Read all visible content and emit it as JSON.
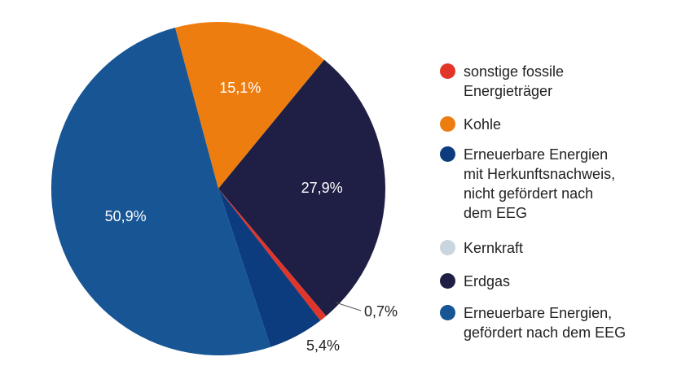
{
  "chart_data": {
    "type": "pie",
    "slices": [
      {
        "name": "sonstige fossile Energieträger",
        "value": 0.7,
        "label": "0,7%",
        "color": "#e2352a"
      },
      {
        "name": "Kohle",
        "value": 15.1,
        "label": "15,1%",
        "color": "#ee7d0f"
      },
      {
        "name": "Erneuerbare Energien mit Herkunftsnachweis, nicht gefördert nach dem EEG",
        "value": 5.4,
        "label": "5,4%",
        "color": "#0c3c7e"
      },
      {
        "name": "Kernkraft",
        "value": 0,
        "label": "",
        "color": "#c9d6df"
      },
      {
        "name": "Erdgas",
        "value": 27.9,
        "label": "27,9%",
        "color": "#1f1f45"
      },
      {
        "name": "Erneuerbare Energien, gefördert nach dem EEG",
        "value": 50.9,
        "label": "50,9%",
        "color": "#175594"
      }
    ],
    "start_angle_deg": -15,
    "legend_position": "right"
  },
  "legend": [
    {
      "label": "sonstige fossile\nEnergieträger",
      "color": "#e2352a"
    },
    {
      "label": "Kohle",
      "color": "#ee7d0f"
    },
    {
      "label": "Erneuerbare Energien\nmit Herkunftsnachweis,\nnicht gefördert nach\ndem EEG",
      "color": "#0c3c7e"
    },
    {
      "label": "Kernkraft",
      "color": "#c9d6df"
    },
    {
      "label": "Erdgas",
      "color": "#1f1f45"
    },
    {
      "label": "Erneuerbare Energien,\ngefördert nach dem EEG",
      "color": "#175594"
    }
  ]
}
